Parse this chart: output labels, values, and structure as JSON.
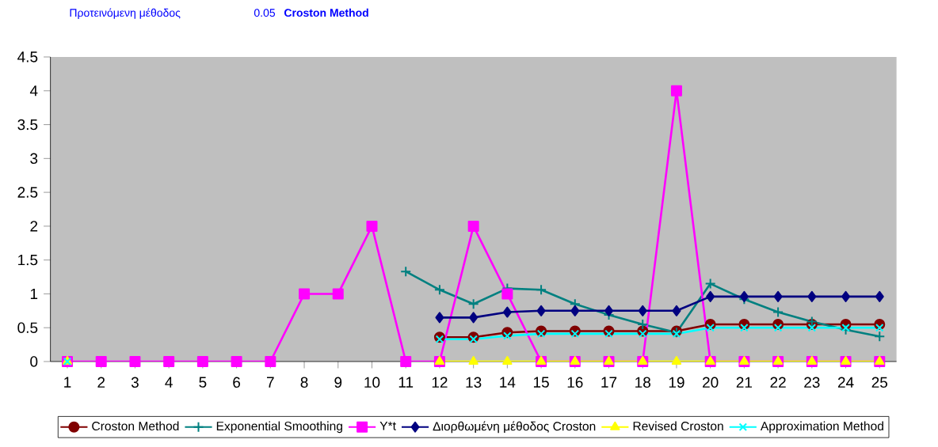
{
  "chart_data": {
    "type": "line",
    "title": "Προτεινόμενη μέθοδος",
    "annotations": [
      "0.05",
      "**Croston Method**"
    ],
    "categories": [
      "1",
      "2",
      "3",
      "4",
      "5",
      "6",
      "7",
      "8",
      "9",
      "10",
      "11",
      "12",
      "13",
      "14",
      "15",
      "16",
      "17",
      "18",
      "19",
      "20",
      "21",
      "22",
      "23",
      "24",
      "25"
    ],
    "ylim": [
      0,
      4.5
    ],
    "yticks": [
      0,
      0.5,
      1,
      1.5,
      2,
      2.5,
      3,
      3.5,
      4,
      4.5
    ],
    "grid": false,
    "legend": "bottom",
    "series": [
      {
        "name": "Croston Method",
        "color": "#800000",
        "marker": "circle",
        "values": [
          null,
          null,
          null,
          null,
          null,
          null,
          null,
          null,
          null,
          null,
          null,
          0.36,
          0.36,
          0.43,
          0.45,
          0.45,
          0.45,
          0.45,
          0.45,
          0.55,
          0.55,
          0.55,
          0.55,
          0.55,
          0.55
        ]
      },
      {
        "name": "Exponential Smoothing",
        "color": "#008080",
        "marker": "cross",
        "values": [
          null,
          null,
          null,
          null,
          null,
          null,
          null,
          null,
          null,
          null,
          1.33,
          1.06,
          0.85,
          1.08,
          1.06,
          0.85,
          0.69,
          0.55,
          0.43,
          1.15,
          0.92,
          0.73,
          0.59,
          0.47,
          0.37
        ]
      },
      {
        "name": "Y*t",
        "color": "#ff00ff",
        "marker": "square",
        "values": [
          0,
          0,
          0,
          0,
          0,
          0,
          0,
          1,
          1,
          2,
          0,
          0,
          2,
          1,
          0,
          0,
          0,
          0,
          4,
          0,
          0,
          0,
          0,
          0,
          0
        ]
      },
      {
        "name": "Διορθωμένη μέθοδος Croston",
        "color": "#000080",
        "marker": "diamond",
        "values": [
          null,
          null,
          null,
          null,
          null,
          null,
          null,
          null,
          null,
          null,
          null,
          0.65,
          0.65,
          0.73,
          0.75,
          0.75,
          0.75,
          0.75,
          0.75,
          0.96,
          0.96,
          0.96,
          0.96,
          0.96,
          0.96
        ]
      },
      {
        "name": "Revised Croston",
        "color": "#ffff00",
        "marker": "triangle",
        "values": [
          0,
          null,
          null,
          null,
          null,
          null,
          null,
          null,
          null,
          null,
          null,
          0,
          0,
          0,
          0,
          0,
          0,
          0,
          0,
          0,
          0,
          0,
          0,
          0,
          0
        ]
      },
      {
        "name": "Approximation Method",
        "color": "#00ffff",
        "marker": "x",
        "values": [
          0,
          null,
          null,
          null,
          null,
          null,
          null,
          null,
          null,
          null,
          null,
          0.33,
          0.33,
          0.38,
          0.41,
          0.41,
          0.41,
          0.41,
          0.41,
          0.5,
          0.5,
          0.5,
          0.5,
          0.5,
          0.5
        ]
      }
    ]
  }
}
